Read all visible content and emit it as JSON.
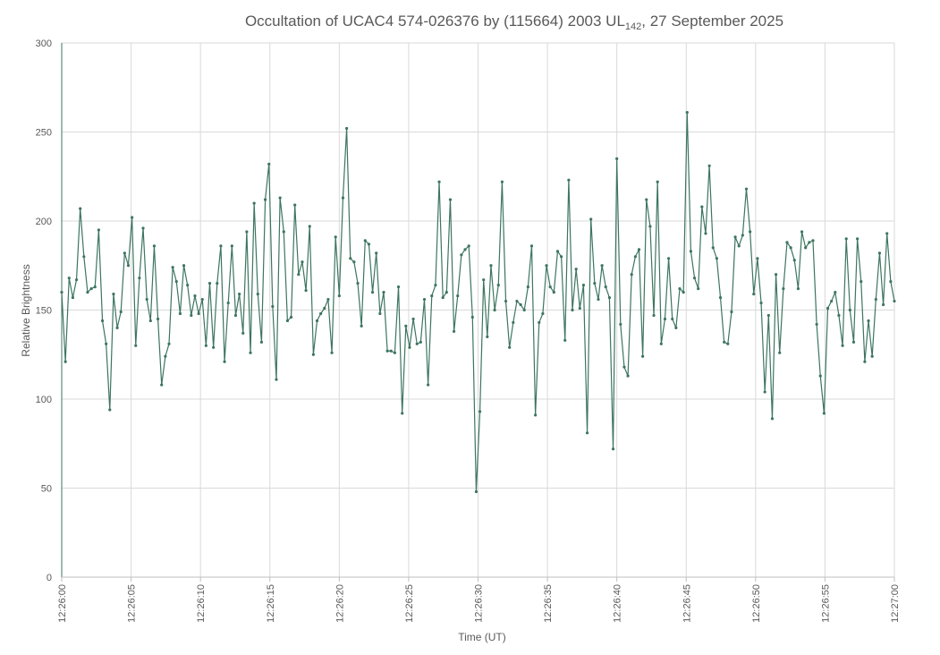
{
  "chart_data": {
    "type": "line",
    "title": "Occultation of UCAC4 574-026376 by (115664) 2003 UL",
    "title_subscript": "142",
    "title_suffix": ", 27 September 2025",
    "xlabel": "Time (UT)",
    "ylabel": "Relative Brightness",
    "ylim": [
      0,
      300
    ],
    "y_ticks": [
      "0",
      "50",
      "100",
      "150",
      "200",
      "250",
      "300"
    ],
    "x_range_seconds": [
      0,
      60
    ],
    "x_ticks": [
      "12:26:00",
      "12:26:05",
      "12:26:10",
      "12:26:15",
      "12:26:20",
      "12:26:25",
      "12:26:30",
      "12:26:35",
      "12:26:40",
      "12:26:45",
      "12:26:50",
      "12:26:55",
      "12:27:00"
    ],
    "grid": true,
    "legend": "none",
    "series_color": "#3d7560",
    "series": [
      {
        "values": [
          160,
          121,
          168,
          157,
          167,
          207,
          180,
          160,
          162,
          163,
          195,
          144,
          131,
          94,
          159,
          140,
          149,
          182,
          175,
          202,
          130,
          168,
          196,
          156,
          144,
          186,
          145,
          108,
          124,
          131,
          174,
          166,
          148,
          175,
          164,
          147,
          158,
          148,
          156,
          130,
          165,
          129,
          165,
          186,
          121,
          154,
          186,
          147,
          159,
          137,
          194,
          126,
          210,
          159,
          132,
          212,
          232,
          152,
          111,
          213,
          194,
          144,
          146,
          209,
          170,
          177,
          161,
          197,
          125,
          144,
          148,
          151,
          156,
          126,
          191,
          158,
          213,
          252,
          179,
          177,
          165,
          141,
          189,
          187,
          160,
          182,
          148,
          160,
          127,
          127,
          126,
          163,
          92,
          141,
          129,
          145,
          131,
          132,
          156,
          108,
          158,
          164,
          222,
          157,
          160,
          212,
          138,
          158,
          181,
          184,
          186,
          146,
          48,
          93,
          167,
          135,
          175,
          150,
          164,
          222,
          155,
          129,
          143,
          155,
          153,
          150,
          163,
          186,
          91,
          143,
          148,
          175,
          163,
          160,
          183,
          180,
          133,
          223,
          150,
          173,
          151,
          164,
          81,
          201,
          165,
          156,
          175,
          163,
          157,
          72,
          235,
          142,
          118,
          113,
          170,
          180,
          184,
          124,
          212,
          197,
          147,
          222,
          131,
          145,
          179,
          145,
          140,
          162,
          160,
          261,
          183,
          168,
          162,
          208,
          193,
          231,
          185,
          179,
          157,
          132,
          131,
          149,
          191,
          186,
          192,
          218,
          194,
          159,
          179,
          154,
          104,
          147,
          89,
          170,
          126,
          162,
          188,
          185,
          178,
          162,
          194,
          185,
          188,
          189,
          142,
          113,
          92,
          151,
          155,
          160,
          147,
          130,
          190,
          150,
          132,
          190,
          166,
          121,
          144,
          124,
          156,
          182,
          153,
          193,
          166,
          155
        ]
      }
    ]
  }
}
